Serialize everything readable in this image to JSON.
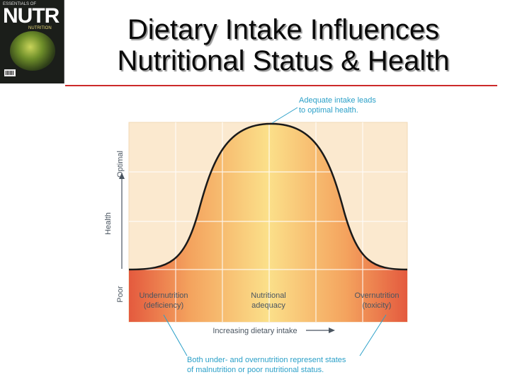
{
  "thumbnail": {
    "masthead": "NUTR",
    "top_text": "ESSENTIALS OF",
    "sub_text": "NUTRITION"
  },
  "title": {
    "line1": "Dietary Intake Influences",
    "line2": "Nutritional Status & Health"
  },
  "diagram": {
    "y_axis": {
      "label": "Health",
      "top": "Optimal",
      "bottom": "Poor"
    },
    "x_axis": {
      "label": "Increasing dietary intake"
    },
    "zones": {
      "left": [
        "Undernutrition",
        "(deficiency)"
      ],
      "center": [
        "Nutritional",
        "adequacy"
      ],
      "right": [
        "Overnutrition",
        "(toxicity)"
      ]
    },
    "callout_top": [
      "Adequate intake leads",
      "to optimal health."
    ],
    "callout_bottom": [
      "Both under- and overnutrition represent states",
      "of malnutrition or poor nutritional status."
    ],
    "colors": {
      "accent_blue": "#2ba0c8",
      "rule_red": "#cc2a2a",
      "curve": "#1a1a1a",
      "peach": "#fbe9cf",
      "red_zone": "#e0553a",
      "yellow_peak": "#fbe08a"
    }
  }
}
